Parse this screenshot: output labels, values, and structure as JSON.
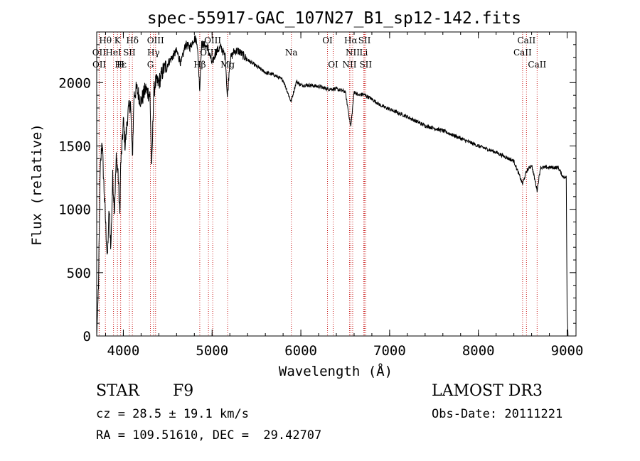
{
  "chart_data": {
    "type": "line",
    "title": "spec-55917-GAC_107N27_B1_sp12-142.fits",
    "xlabel": "Wavelength (Å)",
    "ylabel": "Flux (relative)",
    "xlim": [
      3700,
      9100
    ],
    "ylim": [
      0,
      2400
    ],
    "xticks": [
      4000,
      5000,
      6000,
      7000,
      8000,
      9000
    ],
    "yticks": [
      0,
      500,
      1000,
      1500,
      2000
    ],
    "grid": false,
    "series": [
      {
        "name": "spectrum",
        "x": [
          3700,
          3720,
          3740,
          3760,
          3780,
          3800,
          3820,
          3840,
          3860,
          3880,
          3900,
          3920,
          3940,
          3960,
          3970,
          3990,
          4000,
          4020,
          4050,
          4080,
          4102,
          4120,
          4150,
          4200,
          4250,
          4300,
          4320,
          4340,
          4360,
          4400,
          4450,
          4500,
          4550,
          4600,
          4650,
          4700,
          4750,
          4800,
          4830,
          4861,
          4880,
          4900,
          4950,
          5000,
          5050,
          5100,
          5150,
          5172,
          5200,
          5250,
          5300,
          5400,
          5500,
          5600,
          5700,
          5800,
          5890,
          5950,
          6000,
          6100,
          6200,
          6300,
          6400,
          6500,
          6563,
          6600,
          6650,
          6700,
          6800,
          6900,
          7000,
          7200,
          7400,
          7600,
          7800,
          8000,
          8200,
          8400,
          8498,
          8542,
          8600,
          8662,
          8700,
          8800,
          8900,
          8950,
          8990,
          9000,
          9010
        ],
        "y": [
          0,
          400,
          1300,
          1550,
          1200,
          900,
          600,
          1000,
          700,
          1250,
          1000,
          1400,
          1300,
          950,
          1350,
          1550,
          1700,
          1500,
          1750,
          1850,
          1400,
          1900,
          1950,
          1850,
          1950,
          1900,
          1300,
          1900,
          2000,
          2000,
          2100,
          2150,
          2200,
          2250,
          2150,
          2300,
          2280,
          2350,
          2330,
          1950,
          2300,
          2300,
          2280,
          2150,
          2250,
          2280,
          2200,
          1880,
          2180,
          2250,
          2250,
          2180,
          2130,
          2080,
          2060,
          2020,
          1850,
          2010,
          1980,
          1980,
          1970,
          1950,
          1950,
          1930,
          1650,
          1930,
          1900,
          1910,
          1870,
          1820,
          1790,
          1730,
          1660,
          1620,
          1560,
          1500,
          1450,
          1380,
          1200,
          1300,
          1350,
          1150,
          1330,
          1330,
          1330,
          1260,
          1250,
          200,
          0
        ]
      }
    ],
    "spectral_lines": [
      {
        "label": "Hθ",
        "x": 3798,
        "row": 1
      },
      {
        "label": "K",
        "x": 3934,
        "row": 1
      },
      {
        "label": "Hδ",
        "x": 4102,
        "row": 1
      },
      {
        "label": "OIII",
        "x": 4363,
        "row": 1
      },
      {
        "label": "OIII",
        "x": 5007,
        "row": 1
      },
      {
        "label": "OI",
        "x": 6300,
        "row": 1
      },
      {
        "label": "Hα",
        "x": 6563,
        "row": 1
      },
      {
        "label": "SII",
        "x": 6717,
        "row": 1
      },
      {
        "label": "CaII",
        "x": 8542,
        "row": 1
      },
      {
        "label": "OII",
        "x": 3727,
        "row": 2
      },
      {
        "label": "HeI",
        "x": 3889,
        "row": 2
      },
      {
        "label": "SII",
        "x": 4068,
        "row": 2
      },
      {
        "label": "Hγ",
        "x": 4340,
        "row": 2
      },
      {
        "label": "OIII",
        "x": 4959,
        "row": 2
      },
      {
        "label": "Na",
        "x": 5893,
        "row": 2
      },
      {
        "label": "NII",
        "x": 6584,
        "row": 2
      },
      {
        "label": "Li",
        "x": 6708,
        "row": 2
      },
      {
        "label": "CaII",
        "x": 8498,
        "row": 2
      },
      {
        "label": "OII",
        "x": 3729,
        "row": 3
      },
      {
        "label": "Hε",
        "x": 3970,
        "row": 3
      },
      {
        "label": "H",
        "x": 3968,
        "row": 3
      },
      {
        "label": "G",
        "x": 4305,
        "row": 3
      },
      {
        "label": "Hβ",
        "x": 4861,
        "row": 3
      },
      {
        "label": "Mg",
        "x": 5175,
        "row": 3
      },
      {
        "label": "OI",
        "x": 6364,
        "row": 3
      },
      {
        "label": "NII",
        "x": 6548,
        "row": 3
      },
      {
        "label": "SII",
        "x": 6731,
        "row": 3
      },
      {
        "label": "CaII",
        "x": 8662,
        "row": 3
      }
    ]
  },
  "info": {
    "object_class": "STAR",
    "subclass": "F9",
    "survey": "LAMOST DR3",
    "cz": "cz = 28.5 ± 19.1 km/s",
    "obs_date": "Obs-Date: 20111221",
    "coords": "RA = 109.51610, DEC =  29.42707"
  },
  "colors": {
    "line": "#000000",
    "marker": "#cc2222",
    "background": "#ffffff"
  }
}
